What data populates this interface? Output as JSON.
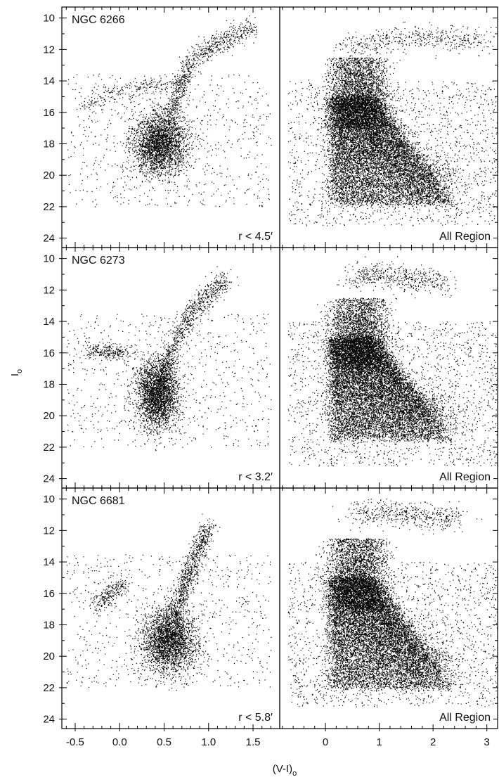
{
  "chart_data": {
    "type": "scatter",
    "description_layout": "3x2",
    "ylabel": "I",
    "ylabel_subscript": "o",
    "xlabel": "(V-I)",
    "xlabel_subscript": "o",
    "y_inverted": true,
    "ylim": [
      9.3,
      24.6
    ],
    "yticks": [
      "10",
      "12",
      "14",
      "16",
      "18",
      "20",
      "22",
      "24"
    ],
    "left_xlim": [
      -0.65,
      1.8
    ],
    "left_xticks": [
      "-0.5",
      "0.0",
      "0.5",
      "1.0",
      "1.5"
    ],
    "right_xlim": [
      -0.85,
      3.2
    ],
    "right_xticks": [
      "0",
      "1",
      "2",
      "3"
    ],
    "marker_color": "#000000",
    "panels": [
      {
        "row": 0,
        "column": "left",
        "cluster": "NGC 6266",
        "region": "r < 4.5′",
        "features": {
          "main_sequence_clump": {
            "x": 0.45,
            "y": 18.0,
            "sx": 0.15,
            "sy": 1.0
          },
          "red_giant_branch": [
            [
              0.5,
              17.5
            ],
            [
              0.65,
              15.0
            ],
            [
              0.8,
              12.6
            ],
            [
              1.1,
              11.6
            ],
            [
              1.5,
              10.6
            ]
          ],
          "horizontal_branch": [
            [
              -0.4,
              15.6
            ],
            [
              0.0,
              14.6
            ],
            [
              0.35,
              14.2
            ],
            [
              0.7,
              14.3
            ]
          ]
        }
      },
      {
        "row": 0,
        "column": "right",
        "cluster": "",
        "region": "All Region",
        "features": {
          "disk_main_sequence": [
            [
              0.6,
              14.0
            ],
            [
              1.0,
              17.5
            ],
            [
              1.5,
              19.5
            ],
            [
              2.2,
              20.5
            ]
          ],
          "dense_region": {
            "x": [
              0.1,
              2.3
            ],
            "y": [
              15.0,
              21.8
            ]
          },
          "red_clump_plume": [
            [
              0.4,
              12.0
            ],
            [
              0.8,
              11.5
            ],
            [
              1.6,
              11.2
            ],
            [
              3.0,
              11.4
            ]
          ]
        }
      },
      {
        "row": 1,
        "column": "left",
        "cluster": "NGC 6273",
        "region": "r < 3.2′",
        "features": {
          "main_sequence_clump": {
            "x": 0.42,
            "y": 18.6,
            "sx": 0.12,
            "sy": 1.1
          },
          "red_giant_branch": [
            [
              0.45,
              18.0
            ],
            [
              0.6,
              15.5
            ],
            [
              0.8,
              13.5
            ],
            [
              1.0,
              12.2
            ],
            [
              1.2,
              11.3
            ]
          ],
          "horizontal_branch": [
            [
              -0.35,
              16.0
            ],
            [
              -0.15,
              15.9
            ],
            [
              0.1,
              16.0
            ]
          ]
        }
      },
      {
        "row": 1,
        "column": "right",
        "cluster": "",
        "region": "All Region",
        "features": {
          "disk_main_sequence": [
            [
              0.6,
              14.0
            ],
            [
              1.0,
              17.5
            ],
            [
              1.5,
              19.2
            ],
            [
              2.2,
              20.0
            ]
          ],
          "dense_region": {
            "x": [
              0.1,
              2.3
            ],
            "y": [
              15.0,
              21.5
            ]
          },
          "red_clump_plume": [
            [
              0.5,
              11.2
            ],
            [
              1.0,
              11.0
            ],
            [
              2.2,
              11.6
            ]
          ]
        }
      },
      {
        "row": 2,
        "column": "left",
        "cluster": "NGC 6681",
        "region": "r < 5.8′",
        "features": {
          "main_sequence_clump": {
            "x": 0.55,
            "y": 19.0,
            "sx": 0.15,
            "sy": 1.0
          },
          "red_giant_branch": [
            [
              0.6,
              18.0
            ],
            [
              0.72,
              15.5
            ],
            [
              0.85,
              13.5
            ],
            [
              1.0,
              11.8
            ]
          ],
          "horizontal_branch": [
            [
              -0.25,
              16.8
            ],
            [
              -0.1,
              15.8
            ],
            [
              0.05,
              15.4
            ]
          ]
        }
      },
      {
        "row": 2,
        "column": "right",
        "cluster": "",
        "region": "All Region",
        "features": {
          "disk_main_sequence": [
            [
              0.6,
              14.0
            ],
            [
              1.0,
              17.5
            ],
            [
              1.5,
              19.5
            ],
            [
              2.2,
              20.5
            ]
          ],
          "dense_region": {
            "x": [
              0.1,
              2.3
            ],
            "y": [
              15.0,
              22.0
            ]
          },
          "red_clump_plume": [
            [
              0.5,
              11.0
            ],
            [
              1.0,
              10.8
            ],
            [
              2.5,
              11.2
            ]
          ]
        }
      }
    ]
  }
}
